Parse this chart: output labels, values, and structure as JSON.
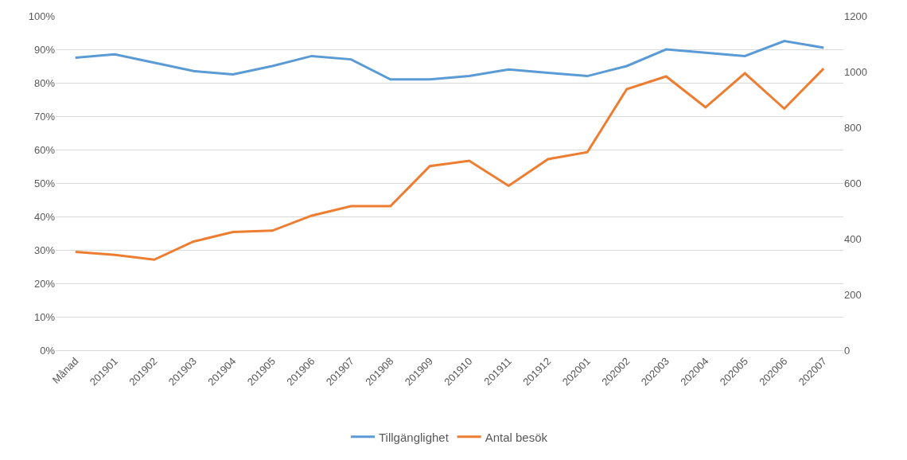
{
  "chart_data": {
    "type": "line",
    "categories": [
      "Månad",
      "201901",
      "201902",
      "201903",
      "201904",
      "201905",
      "201906",
      "201907",
      "201908",
      "201909",
      "201910",
      "201911",
      "201912",
      "202001",
      "202002",
      "202003",
      "202004",
      "202005",
      "202006",
      "202007"
    ],
    "series": [
      {
        "name": "Tillgänglighet",
        "color": "#5b9bd5",
        "values": [
          0.875,
          0.885,
          0.86,
          0.835,
          0.825,
          0.85,
          0.88,
          0.87,
          0.81,
          0.81,
          0.82,
          0.84,
          0.83,
          0.82,
          0.85,
          0.9,
          0.89,
          0.88,
          0.925,
          0.905
        ]
      },
      {
        "name": "Antal besök",
        "color": "#ed7d31",
        "axis": "y2",
        "values": [
          353,
          342,
          325,
          390,
          424,
          429,
          483,
          517,
          517,
          661,
          680,
          590,
          686,
          711,
          937,
          983,
          872,
          994,
          867,
          1011
        ]
      }
    ],
    "ylim": [
      0,
      1
    ],
    "yticks": [
      {
        "value": 0,
        "label": "0%"
      },
      {
        "value": 0.1,
        "label": "10%"
      },
      {
        "value": 0.2,
        "label": "20%"
      },
      {
        "value": 0.3,
        "label": "30%"
      },
      {
        "value": 0.4,
        "label": "40%"
      },
      {
        "value": 0.5,
        "label": "50%"
      },
      {
        "value": 0.6,
        "label": "60%"
      },
      {
        "value": 0.7,
        "label": "70%"
      },
      {
        "value": 0.8,
        "label": "80%"
      },
      {
        "value": 0.9,
        "label": "90%"
      },
      {
        "value": 1,
        "label": "100%"
      }
    ],
    "y2lim": [
      0,
      1200
    ],
    "y2ticks": [
      0,
      200,
      400,
      600,
      800,
      1000,
      1200
    ],
    "grid": "y",
    "legend": "bottom",
    "marker": "none",
    "line_style": "solid"
  }
}
